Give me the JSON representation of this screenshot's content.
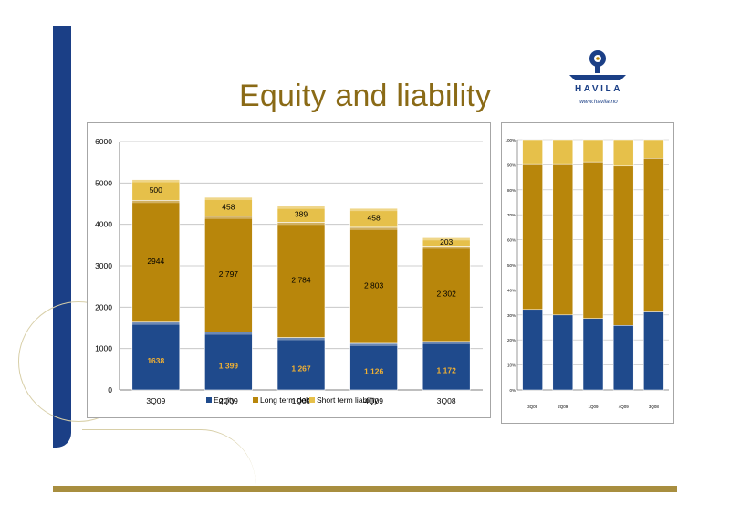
{
  "slide": {
    "title": "Equity and liability",
    "logo_text": "HAVILA",
    "logo_url": "www.havila.no",
    "colors": {
      "band": "#1b3f86",
      "rule": "#a88e3f",
      "title": "#8a6a16",
      "equity": "#1f4a8c",
      "long_term_debt": "#b8860b",
      "short_term_liability": "#e6c04a"
    }
  },
  "chart_data": [
    {
      "type": "bar",
      "stacked": true,
      "categories": [
        "3Q09",
        "2Q09",
        "1Q09",
        "4Q09",
        "3Q08"
      ],
      "series": [
        {
          "name": "Equity",
          "values": [
            1638,
            1399,
            1267,
            1126,
            1172
          ],
          "labels": [
            "1638",
            "1 399",
            "1 267",
            "1 126",
            "1 172"
          ]
        },
        {
          "name": "Long term debt",
          "values": [
            2944,
            2797,
            2784,
            2803,
            2302
          ],
          "labels": [
            "2944",
            "2 797",
            "2 784",
            "2 803",
            "2 302"
          ]
        },
        {
          "name": "Short term liability",
          "values": [
            500,
            458,
            389,
            458,
            203
          ],
          "labels": [
            "500",
            "458",
            "389",
            "458",
            "203"
          ]
        }
      ],
      "yticks": [
        "0",
        "1000",
        "2000",
        "3000",
        "4000",
        "5000",
        "6000"
      ],
      "ylim": [
        0,
        6000
      ],
      "grid": true,
      "legend": "bottom"
    },
    {
      "type": "bar",
      "stacked": true,
      "normalized": true,
      "categories": [
        "3Q09",
        "2Q09",
        "1Q09",
        "4Q09",
        "3Q08"
      ],
      "series": [
        {
          "name": "Equity",
          "values": [
            32.2,
            30.0,
            28.6,
            25.8,
            31.2
          ]
        },
        {
          "name": "Long term debt",
          "values": [
            57.9,
            60.1,
            62.6,
            63.7,
            61.4
          ]
        },
        {
          "name": "Short term liability",
          "values": [
            9.9,
            9.9,
            8.8,
            10.5,
            7.4
          ]
        }
      ],
      "yticks": [
        "0%",
        "10%",
        "20%",
        "30%",
        "40%",
        "50%",
        "60%",
        "70%",
        "80%",
        "90%",
        "100%"
      ],
      "ylim": [
        0,
        100
      ],
      "grid": true
    }
  ]
}
